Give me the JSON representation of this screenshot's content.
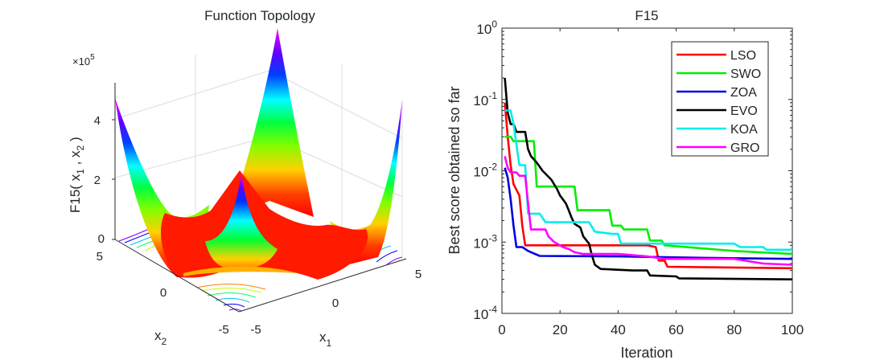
{
  "chart_data": [
    {
      "type": "surface",
      "title": "Function Topology",
      "zlabel": "F15( x1 , x2 )",
      "xlabel": "x1",
      "ylabel": "x2",
      "z_multiplier_label": "×10",
      "z_multiplier_exp": "5",
      "x_ticks": [
        "-5",
        "0",
        "5"
      ],
      "y_ticks": [
        "-5",
        "0",
        "5"
      ],
      "z_ticks": [
        "0",
        "2",
        "4"
      ],
      "x_range": [
        -5,
        5
      ],
      "y_range": [
        -5,
        5
      ],
      "z_range": [
        0,
        500000
      ],
      "colormap": "hsv",
      "contour_projection": true
    },
    {
      "type": "line",
      "title": "F15",
      "xlabel": "Iteration",
      "ylabel": "Best score obtained so far",
      "yscale": "log",
      "xlim": [
        0,
        100
      ],
      "ylim": [
        0.0001,
        1
      ],
      "x_ticks": [
        "0",
        "20",
        "40",
        "60",
        "80",
        "100"
      ],
      "y_ticks": [
        {
          "base": "10",
          "exp": "0"
        },
        {
          "base": "10",
          "exp": "-1"
        },
        {
          "base": "10",
          "exp": "-2"
        },
        {
          "base": "10",
          "exp": "-3"
        },
        {
          "base": "10",
          "exp": "-4"
        }
      ],
      "legend_position": "top-right",
      "series": [
        {
          "name": "LSO",
          "color": "#ff0000",
          "points": [
            [
              1,
              0.09
            ],
            [
              2,
              0.03
            ],
            [
              3,
              0.012
            ],
            [
              4,
              0.0065
            ],
            [
              6,
              0.0045
            ],
            [
              7,
              0.0017
            ],
            [
              8,
              0.0009
            ],
            [
              20,
              0.0009
            ],
            [
              50,
              0.0009
            ],
            [
              53,
              0.00085
            ],
            [
              54,
              0.00055
            ],
            [
              56,
              0.00055
            ],
            [
              57,
              0.00045
            ],
            [
              100,
              0.00043
            ]
          ]
        },
        {
          "name": "SWO",
          "color": "#00ee00",
          "points": [
            [
              1,
              0.03
            ],
            [
              3,
              0.03
            ],
            [
              4,
              0.026
            ],
            [
              11,
              0.026
            ],
            [
              12,
              0.006
            ],
            [
              25,
              0.006
            ],
            [
              26,
              0.0028
            ],
            [
              37,
              0.0028
            ],
            [
              38,
              0.0017
            ],
            [
              41,
              0.0017
            ],
            [
              42,
              0.0015
            ],
            [
              50,
              0.0015
            ],
            [
              51,
              0.00105
            ],
            [
              55,
              0.00105
            ],
            [
              56,
              0.0009
            ],
            [
              80,
              0.00075
            ],
            [
              100,
              0.00068
            ]
          ]
        },
        {
          "name": "ZOA",
          "color": "#0000dd",
          "points": [
            [
              1,
              0.011
            ],
            [
              2,
              0.008
            ],
            [
              3,
              0.004
            ],
            [
              4,
              0.0017
            ],
            [
              5,
              0.00085
            ],
            [
              7,
              0.00085
            ],
            [
              9,
              0.00075
            ],
            [
              13,
              0.00064
            ],
            [
              40,
              0.00063
            ],
            [
              70,
              0.0006
            ],
            [
              100,
              0.00058
            ]
          ]
        },
        {
          "name": "EVO",
          "color": "#000000",
          "points": [
            [
              1,
              0.2
            ],
            [
              2,
              0.065
            ],
            [
              3,
              0.045
            ],
            [
              4,
              0.045
            ],
            [
              5,
              0.035
            ],
            [
              8,
              0.035
            ],
            [
              9,
              0.02
            ],
            [
              10,
              0.016
            ],
            [
              12,
              0.013
            ],
            [
              14,
              0.01
            ],
            [
              17,
              0.0075
            ],
            [
              19,
              0.0055
            ],
            [
              20,
              0.0045
            ],
            [
              22,
              0.0035
            ],
            [
              23,
              0.0028
            ],
            [
              24,
              0.0022
            ],
            [
              25,
              0.0018
            ],
            [
              27,
              0.0016
            ],
            [
              28,
              0.0012
            ],
            [
              30,
              0.00095
            ],
            [
              31,
              0.00065
            ],
            [
              32,
              0.00048
            ],
            [
              34,
              0.00042
            ],
            [
              45,
              0.0004
            ],
            [
              50,
              0.0004
            ],
            [
              51,
              0.00034
            ],
            [
              60,
              0.00033
            ],
            [
              61,
              0.00031
            ],
            [
              100,
              0.0003
            ]
          ]
        },
        {
          "name": "KOA",
          "color": "#00eeee",
          "points": [
            [
              1,
              0.07
            ],
            [
              3,
              0.07
            ],
            [
              4,
              0.045
            ],
            [
              6,
              0.012
            ],
            [
              8,
              0.012
            ],
            [
              9,
              0.0025
            ],
            [
              13,
              0.0025
            ],
            [
              15,
              0.0019
            ],
            [
              30,
              0.0019
            ],
            [
              32,
              0.0014
            ],
            [
              38,
              0.0013
            ],
            [
              40,
              0.0013
            ],
            [
              41,
              0.00095
            ],
            [
              80,
              0.00095
            ],
            [
              82,
              0.00085
            ],
            [
              90,
              0.00085
            ],
            [
              91,
              0.00078
            ],
            [
              100,
              0.00078
            ]
          ]
        },
        {
          "name": "GRO",
          "color": "#ff00ff",
          "points": [
            [
              1,
              0.016
            ],
            [
              2,
              0.011
            ],
            [
              3,
              0.0095
            ],
            [
              5,
              0.0095
            ],
            [
              6,
              0.0085
            ],
            [
              8,
              0.0085
            ],
            [
              9,
              0.0035
            ],
            [
              10,
              0.0015
            ],
            [
              15,
              0.0015
            ],
            [
              16,
              0.0012
            ],
            [
              18,
              0.001
            ],
            [
              21,
              0.00085
            ],
            [
              23,
              0.0008
            ],
            [
              25,
              0.00072
            ],
            [
              28,
              0.00068
            ],
            [
              40,
              0.00068
            ],
            [
              50,
              0.00063
            ],
            [
              56,
              0.00058
            ],
            [
              80,
              0.00058
            ],
            [
              90,
              0.0005
            ],
            [
              100,
              0.00048
            ]
          ]
        }
      ]
    }
  ]
}
